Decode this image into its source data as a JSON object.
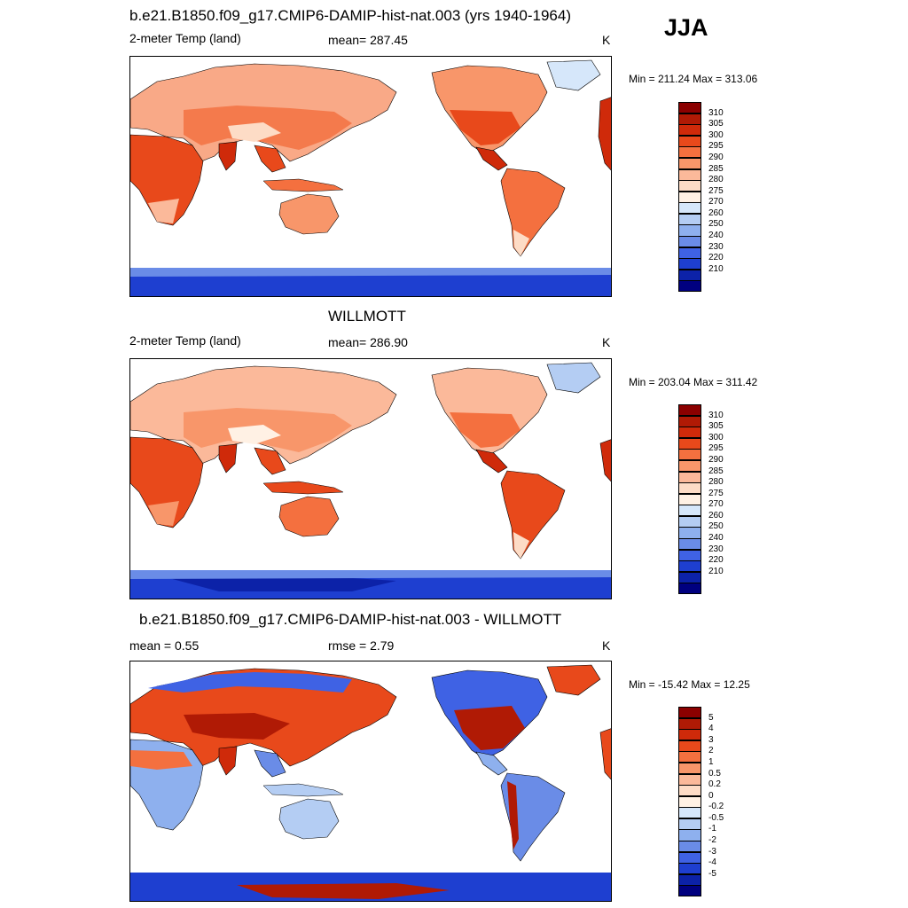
{
  "season": "JJA",
  "panels": [
    {
      "title": "b.e21.B1850.f09_g17.CMIP6-DAMIP-hist-nat.003 (yrs 1940-1964)",
      "left": "2-meter Temp (land)",
      "center": "mean= 287.45",
      "right": "K",
      "minmax": "Min = 211.24 Max = 313.06",
      "colorbar": {
        "labels": [
          "310",
          "305",
          "300",
          "295",
          "290",
          "285",
          "280",
          "275",
          "270",
          "260",
          "250",
          "240",
          "230",
          "220",
          "210"
        ],
        "colors": [
          "#8b0000",
          "#b01a05",
          "#cf2a0a",
          "#e8491b",
          "#f4703f",
          "#f8966a",
          "#fbb99a",
          "#fddcc6",
          "#fff1e4",
          "#d6e7fa",
          "#b4cdf3",
          "#8eb0ee",
          "#6a8ce7",
          "#3f62e4",
          "#1e3fd0",
          "#0c22a8",
          "#00007f"
        ]
      }
    },
    {
      "title": "WILLMOTT",
      "left": "2-meter Temp (land)",
      "center": "mean= 286.90",
      "right": "K",
      "minmax": "Min = 203.04 Max = 311.42",
      "colorbar": {
        "labels": [
          "310",
          "305",
          "300",
          "295",
          "290",
          "285",
          "280",
          "275",
          "270",
          "260",
          "250",
          "240",
          "230",
          "220",
          "210"
        ],
        "colors": [
          "#8b0000",
          "#b01a05",
          "#cf2a0a",
          "#e8491b",
          "#f4703f",
          "#f8966a",
          "#fbb99a",
          "#fddcc6",
          "#fff1e4",
          "#d6e7fa",
          "#b4cdf3",
          "#8eb0ee",
          "#6a8ce7",
          "#3f62e4",
          "#1e3fd0",
          "#0c22a8",
          "#00007f"
        ]
      }
    },
    {
      "title": "b.e21.B1850.f09_g17.CMIP6-DAMIP-hist-nat.003 - WILLMOTT",
      "left": "mean =   0.55",
      "center": "rmse =   2.79",
      "right": "K",
      "minmax": "Min = -15.42 Max =  12.25",
      "colorbar": {
        "labels": [
          "5",
          "4",
          "3",
          "2",
          "1",
          "0.5",
          "0.2",
          "0",
          "-0.2",
          "-0.5",
          "-1",
          "-2",
          "-3",
          "-4",
          "-5"
        ],
        "colors": [
          "#8b0000",
          "#b01a05",
          "#cf2a0a",
          "#e8491b",
          "#f4703f",
          "#f8966a",
          "#fbb99a",
          "#fddcc6",
          "#fff1e4",
          "#d6e7fa",
          "#b4cdf3",
          "#8eb0ee",
          "#6a8ce7",
          "#3f62e4",
          "#1e3fd0",
          "#0c22a8",
          "#00007f"
        ]
      }
    }
  ]
}
